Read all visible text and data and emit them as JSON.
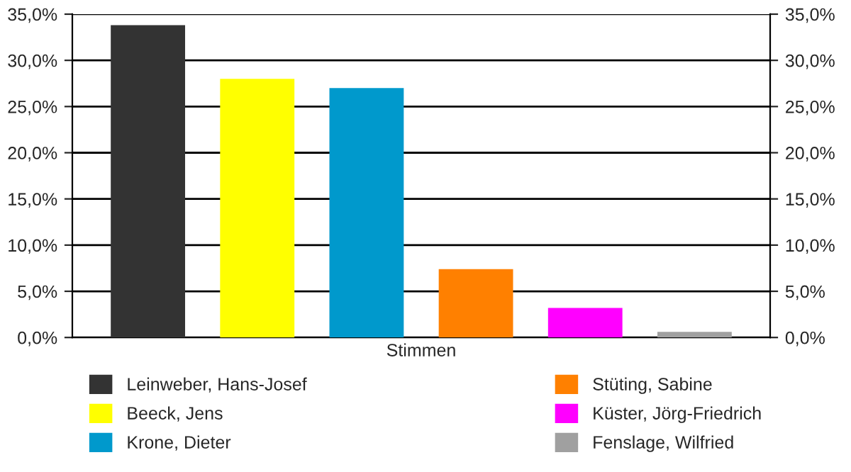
{
  "chart_data": {
    "type": "bar",
    "categories": [
      "Stimmen"
    ],
    "series": [
      {
        "name": "Leinweber, Hans-Josef",
        "color": "#333333",
        "values": [
          33.8
        ]
      },
      {
        "name": "Beeck, Jens",
        "color": "#ffff00",
        "values": [
          28.0
        ]
      },
      {
        "name": "Krone, Dieter",
        "color": "#0099cc",
        "values": [
          27.0
        ]
      },
      {
        "name": "Stüting, Sabine",
        "color": "#ff8000",
        "values": [
          7.4
        ]
      },
      {
        "name": "Küster, Jörg-Friedrich",
        "color": "#ff00ff",
        "values": [
          3.2
        ]
      },
      {
        "name": "Fenslage, Wilfried",
        "color": "#a0a0a0",
        "values": [
          0.6
        ]
      }
    ],
    "ylim": [
      0,
      35
    ],
    "yticks": [
      {
        "value": 0,
        "label": "0,0%"
      },
      {
        "value": 5,
        "label": "5,0%"
      },
      {
        "value": 10,
        "label": "10,0%"
      },
      {
        "value": 15,
        "label": "15,0%"
      },
      {
        "value": 20,
        "label": "20,0%"
      },
      {
        "value": 25,
        "label": "25,0%"
      },
      {
        "value": 30,
        "label": "30,0%"
      },
      {
        "value": 35,
        "label": "35,0%"
      }
    ],
    "grid": "y",
    "legend": "bottom"
  }
}
